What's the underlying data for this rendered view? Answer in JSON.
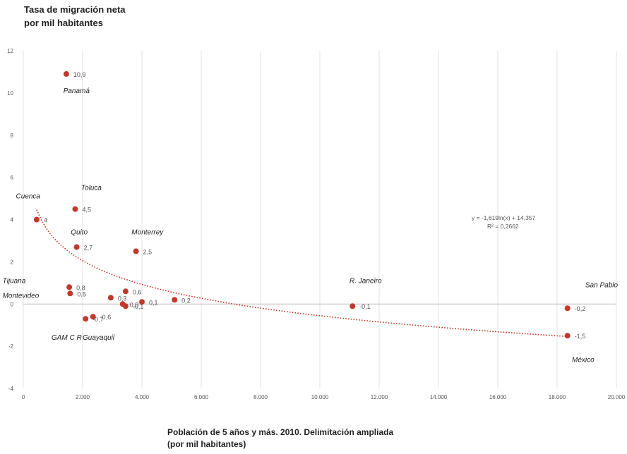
{
  "chart_data": {
    "type": "scatter",
    "ylabel_lines": [
      "Tasa de migración neta",
      "por mil habitantes"
    ],
    "xlabel_lines": [
      "Población de 5 años y más. 2010. Delimitación ampliada",
      "(por mil habitantes)"
    ],
    "xlim": [
      0,
      20000
    ],
    "ylim": [
      -4,
      12
    ],
    "x_ticks": [
      0,
      2000,
      4000,
      6000,
      8000,
      10000,
      12000,
      14000,
      16000,
      18000,
      20000
    ],
    "x_tick_labels": [
      "0",
      "2.000",
      "4.000",
      "6.000",
      "8.000",
      "10.000",
      "12.000",
      "14.000",
      "16.000",
      "18.000",
      "20.000"
    ],
    "y_ticks": [
      -4,
      -2,
      0,
      2,
      4,
      6,
      8,
      10,
      12
    ],
    "y_tick_labels": [
      "-4",
      "-2",
      "0",
      "2",
      "4",
      "6",
      "8",
      "10",
      "12"
    ],
    "grid": "vertical",
    "marker_color": "#c0392b",
    "trend_color": "#d0342c",
    "points": [
      {
        "x": 1450,
        "y": 10.9,
        "label": "10,9"
      },
      {
        "x": 450,
        "y": 4.0,
        "label": "4"
      },
      {
        "x": 1750,
        "y": 4.5,
        "label": "4,5"
      },
      {
        "x": 1800,
        "y": 2.7,
        "label": "2,7"
      },
      {
        "x": 3800,
        "y": 2.5,
        "label": "2,5"
      },
      {
        "x": 1550,
        "y": 0.8,
        "label": "0,8"
      },
      {
        "x": 1580,
        "y": 0.5,
        "label": "0,5"
      },
      {
        "x": 2950,
        "y": 0.3,
        "label": "0,3"
      },
      {
        "x": 3450,
        "y": 0.6,
        "label": "0,6"
      },
      {
        "x": 3350,
        "y": 0.0,
        "label": "0,0"
      },
      {
        "x": 3450,
        "y": -0.1,
        "label": "-0,1"
      },
      {
        "x": 4000,
        "y": 0.1,
        "label": "0,1"
      },
      {
        "x": 5100,
        "y": 0.2,
        "label": "0,2"
      },
      {
        "x": 2100,
        "y": -0.7,
        "label": "-0,7"
      },
      {
        "x": 2350,
        "y": -0.6,
        "label": "-0,6"
      },
      {
        "x": 11100,
        "y": -0.1,
        "label": "-0,1"
      },
      {
        "x": 18350,
        "y": -0.2,
        "label": "-0,2"
      },
      {
        "x": 18350,
        "y": -1.5,
        "label": "-1,5"
      }
    ],
    "city_labels": [
      {
        "text": "Panamá",
        "x": 1350,
        "y": 10.0
      },
      {
        "text": "Cuenca",
        "x": -250,
        "y": 5.0
      },
      {
        "text": "Toluca",
        "x": 1950,
        "y": 5.4
      },
      {
        "text": "Quito",
        "x": 1600,
        "y": 3.3
      },
      {
        "text": "Monterrey",
        "x": 3650,
        "y": 3.3
      },
      {
        "text": "Tijuana",
        "x": -700,
        "y": 1.0
      },
      {
        "text": "Montevideo",
        "x": -700,
        "y": 0.3
      },
      {
        "text": "GAM C R",
        "x": 950,
        "y": -1.7
      },
      {
        "text": "Guayaquil",
        "x": 2000,
        "y": -1.7
      },
      {
        "text": "R. Janeiro",
        "x": 11000,
        "y": 1.0
      },
      {
        "text": "San Pablo",
        "x": 18950,
        "y": 0.8
      },
      {
        "text": "México",
        "x": 18500,
        "y": -2.75
      }
    ],
    "trendline": {
      "equation": "y = -1,619ln(x) + 14,357",
      "r2": "R² = 0,2662",
      "a": -1.619,
      "b": 14.357,
      "x_range": [
        450,
        18350
      ]
    }
  }
}
